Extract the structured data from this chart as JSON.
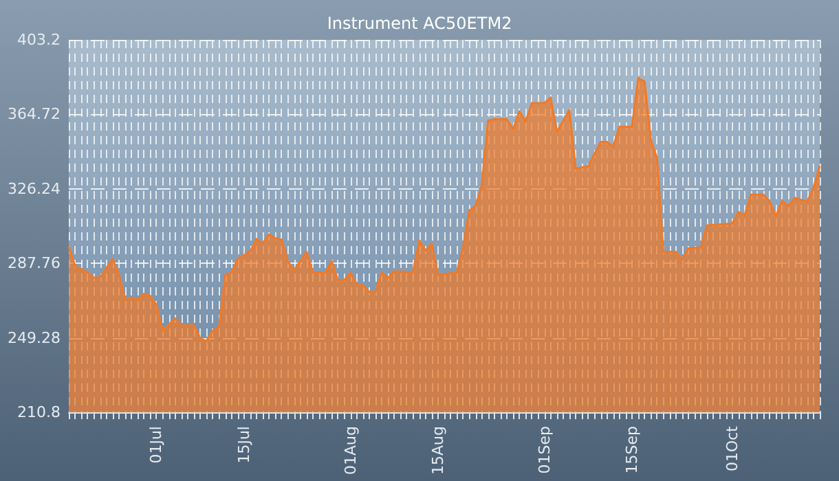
{
  "chart_data": {
    "type": "area",
    "title": "Instrument AC50ETM2",
    "x": [
      "--06-17",
      "--06-18",
      "--06-20",
      "--06-21",
      "--06-22",
      "--06-24",
      "--06-25",
      "--06-26",
      "--06-27",
      "--06-28",
      "--06-29",
      "--06-30",
      "--07-01",
      "--07-02",
      "--07-04",
      "--07-05",
      "--07-07",
      "--07-08",
      "--07-09",
      "--07-10",
      "--07-11",
      "--07-12",
      "--07-13",
      "--07-14",
      "--07-16",
      "--07-17",
      "--07-18",
      "--07-19",
      "--07-20",
      "--07-21",
      "--07-22",
      "--07-23",
      "--07-25",
      "--07-26",
      "--07-28",
      "--07-29",
      "--07-30",
      "--07-31",
      "--08-01",
      "--08-02",
      "--08-03",
      "--08-04",
      "--08-05",
      "--08-06",
      "--08-07",
      "--08-08",
      "--08-11",
      "--08-12",
      "--08-13",
      "--08-14",
      "--08-15",
      "--08-18",
      "--08-19",
      "--08-20",
      "--08-21",
      "--08-22",
      "--08-23",
      "--08-24",
      "--08-26",
      "--08-27",
      "--08-28",
      "--08-29",
      "--08-30",
      "--09-01",
      "--09-02",
      "--09-03",
      "--09-05",
      "--09-06",
      "--09-08",
      "--09-10",
      "--09-11",
      "--09-12",
      "--09-13",
      "--09-15",
      "--09-16",
      "--09-17",
      "--09-18",
      "--09-19",
      "--09-20",
      "--09-22",
      "--09-23",
      "--09-24",
      "--09-26",
      "--09-27",
      "--10-01",
      "--10-02",
      "--10-03",
      "--10-04",
      "--10-06",
      "--10-07",
      "--10-08",
      "--10-09",
      "--10-10",
      "--10-11",
      "--10-13",
      "--10-14",
      "--10-15"
    ],
    "series": [
      {
        "color": "#f07a28",
        "values": [
          296.5,
          286.5,
          283,
          280.4,
          280.4,
          290,
          281.8,
          269,
          270,
          269,
          272,
          271,
          266.4,
          253,
          259.3,
          255.7,
          255.7,
          249.1,
          247.5,
          253,
          254.6,
          281.8,
          283,
          290,
          293.9,
          300.3,
          298,
          302.6,
          300.7,
          300,
          288.9,
          284.2,
          293.7,
          283,
          283,
          288.9,
          279,
          279,
          283,
          276.6,
          276.6,
          273,
          273,
          283,
          280.2,
          283.7,
          283,
          299.5,
          294.4,
          297.9,
          281.8,
          283,
          296,
          315,
          317.3,
          328,
          361.5,
          362.2,
          362.2,
          357,
          366.3,
          361,
          370.5,
          370.5,
          373.4,
          355.6,
          367,
          336.7,
          337.9,
          350.5,
          350.5,
          348,
          358.3,
          358.3,
          383.5,
          381.7,
          351.6,
          342.1,
          293.7,
          293.7,
          289.6,
          295.5,
          296,
          307.4,
          308.3,
          314.2,
          312.6,
          323.2,
          323.2,
          319.6,
          312.1,
          320.1,
          317.3,
          321.6,
          319.6,
          326.8,
          337.9
        ]
      }
    ],
    "xlim": [
      "--06-17",
      "--10-15"
    ],
    "xticks": [
      {
        "value": "--07-01",
        "label": "01Jul"
      },
      {
        "value": "--07-15",
        "label": "15Jul"
      },
      {
        "value": "--08-01",
        "label": "01Aug"
      },
      {
        "value": "--08-15",
        "label": "15Aug"
      },
      {
        "value": "--09-01",
        "label": "01Sep"
      },
      {
        "value": "--09-15",
        "label": "15Sep"
      },
      {
        "value": "--10-01",
        "label": "01Oct"
      }
    ],
    "ylim": [
      210.8,
      403.2
    ],
    "yticks": [
      210.8,
      249.28,
      287.76,
      326.24,
      364.72,
      403.2
    ],
    "grid": true,
    "line_style": "solid"
  }
}
